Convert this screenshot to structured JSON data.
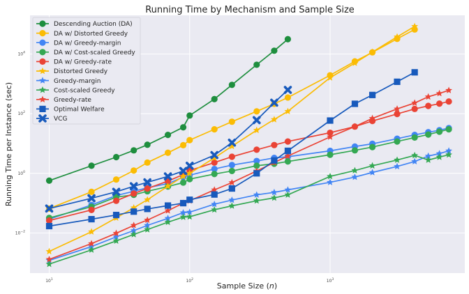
{
  "chart_data": {
    "type": "line",
    "title": "Running Time by Mechanism and Sample Size",
    "xlabel": "Sample Size",
    "xlabel_var": "n",
    "ylabel": "Running Time per Instance (sec)",
    "xscale": "log",
    "yscale": "log",
    "xlim": [
      7.3,
      9100
    ],
    "ylim": [
      0.00045,
      200000
    ],
    "grid": true,
    "legend_position": "top-left",
    "x_ticks": [
      {
        "value": 10,
        "base": "10",
        "exp": "1"
      },
      {
        "value": 100,
        "base": "10",
        "exp": "2"
      },
      {
        "value": 1000,
        "base": "10",
        "exp": "3"
      }
    ],
    "y_ticks": [
      {
        "value": 0.01,
        "base": "10",
        "exp": "−2"
      },
      {
        "value": 1,
        "base": "10",
        "exp": "0"
      },
      {
        "value": 100,
        "base": "10",
        "exp": "2"
      },
      {
        "value": 10000,
        "base": "10",
        "exp": "4"
      }
    ],
    "background": "#eaeaf2",
    "series": [
      {
        "name": "Descending Auction (DA)",
        "color": "#1e8e3e",
        "marker": "circle",
        "x": [
          10,
          20,
          30,
          40,
          50,
          70,
          90,
          100,
          150,
          200,
          300,
          400,
          500
        ],
        "y": [
          0.57,
          1.8,
          3.5,
          5.9,
          9.1,
          19.5,
          35,
          87,
          310,
          930,
          4400,
          13000,
          31600
        ]
      },
      {
        "name": "DA w/ Distorted Greedy",
        "color": "#fbbc04",
        "marker": "circle",
        "x": [
          10,
          20,
          30,
          40,
          50,
          70,
          90,
          100,
          150,
          200,
          300,
          400,
          500,
          1000,
          1500,
          2000,
          3000,
          4000
        ],
        "y": [
          0.066,
          0.24,
          0.62,
          1.24,
          2.3,
          4.9,
          8.8,
          13,
          30,
          54,
          120,
          215,
          350,
          1950,
          5700,
          11500,
          32500,
          67000
        ]
      },
      {
        "name": "DA w/ Greedy-margin",
        "color": "#4285f4",
        "marker": "circle",
        "x": [
          10,
          20,
          30,
          40,
          50,
          70,
          90,
          100,
          150,
          200,
          300,
          400,
          500,
          1000,
          1500,
          2000,
          3000,
          4000,
          5000,
          6000,
          7000
        ],
        "y": [
          0.029,
          0.087,
          0.18,
          0.25,
          0.33,
          0.45,
          0.75,
          0.87,
          1.4,
          1.9,
          2.6,
          3.3,
          3.6,
          5.7,
          7.9,
          9.8,
          14.5,
          19.5,
          24,
          28,
          33
        ]
      },
      {
        "name": "DA w/ Cost-scaled Greedy",
        "color": "#34a853",
        "marker": "circle",
        "x": [
          10,
          20,
          30,
          40,
          50,
          70,
          90,
          100,
          150,
          200,
          300,
          400,
          500,
          1000,
          1500,
          2000,
          3000,
          4000,
          5000,
          6000,
          7000
        ],
        "y": [
          0.032,
          0.076,
          0.16,
          0.19,
          0.25,
          0.36,
          0.49,
          0.64,
          0.95,
          1.2,
          1.8,
          2.1,
          2.5,
          4.2,
          5.9,
          7.6,
          11.7,
          15.9,
          20,
          25,
          30
        ]
      },
      {
        "name": "DA w/ Greedy-rate",
        "color": "#ea4335",
        "marker": "circle",
        "x": [
          10,
          20,
          30,
          40,
          50,
          70,
          90,
          100,
          150,
          200,
          300,
          400,
          500,
          1000,
          1500,
          2000,
          3000,
          4000,
          5000,
          6000,
          7000
        ],
        "y": [
          0.026,
          0.059,
          0.12,
          0.21,
          0.31,
          0.55,
          0.91,
          1.24,
          2.3,
          3.6,
          6.2,
          8.9,
          11.7,
          23,
          37,
          57,
          98,
          145,
          183,
          218,
          257
        ]
      },
      {
        "name": "Distorted Greedy",
        "color": "#fbbc04",
        "marker": "star",
        "x": [
          10,
          20,
          30,
          40,
          50,
          70,
          90,
          100,
          150,
          200,
          300,
          400,
          500,
          1000,
          1500,
          2000,
          3000,
          4000
        ],
        "y": [
          0.0024,
          0.011,
          0.032,
          0.07,
          0.13,
          0.37,
          0.79,
          1.0,
          3.3,
          8.1,
          28,
          64,
          120,
          1620,
          5000,
          11700,
          38000,
          85000
        ]
      },
      {
        "name": "Greedy-margin",
        "color": "#4285f4",
        "marker": "star",
        "x": [
          10,
          20,
          30,
          40,
          50,
          70,
          90,
          100,
          150,
          200,
          300,
          400,
          500,
          1000,
          1500,
          2000,
          3000,
          4000,
          5000,
          6000,
          7000
        ],
        "y": [
          0.0012,
          0.0035,
          0.0074,
          0.012,
          0.018,
          0.031,
          0.048,
          0.05,
          0.092,
          0.127,
          0.19,
          0.23,
          0.28,
          0.5,
          0.75,
          1.07,
          1.7,
          2.5,
          3.8,
          4.6,
          5.7
        ]
      },
      {
        "name": "Cost-scaled Greedy",
        "color": "#34a853",
        "marker": "star",
        "x": [
          10,
          20,
          30,
          40,
          50,
          70,
          90,
          100,
          150,
          200,
          300,
          400,
          500,
          1000,
          1500,
          2000,
          3000,
          4000,
          5000,
          6000,
          7000
        ],
        "y": [
          0.0009,
          0.0027,
          0.0054,
          0.0089,
          0.013,
          0.023,
          0.034,
          0.035,
          0.06,
          0.081,
          0.12,
          0.15,
          0.19,
          0.79,
          1.24,
          1.8,
          2.8,
          4.0,
          2.8,
          3.5,
          4.2
        ]
      },
      {
        "name": "Greedy-rate",
        "color": "#ea4335",
        "marker": "star",
        "x": [
          10,
          20,
          30,
          40,
          50,
          70,
          90,
          100,
          150,
          200,
          300,
          400,
          500,
          1000,
          1500,
          2000,
          3000,
          4000,
          5000,
          6000,
          7000
        ],
        "y": [
          0.0013,
          0.0044,
          0.0098,
          0.018,
          0.027,
          0.056,
          0.1,
          0.12,
          0.28,
          0.49,
          1.2,
          2.3,
          3.8,
          16.7,
          37,
          70,
          145,
          230,
          370,
          480,
          610
        ]
      },
      {
        "name": "Optimal Welfare",
        "color": "#185abc",
        "marker": "square",
        "x": [
          10,
          20,
          30,
          40,
          50,
          70,
          90,
          100,
          150,
          200,
          300,
          400,
          500,
          1000,
          1500,
          2000,
          3000,
          4000
        ],
        "y": [
          0.017,
          0.029,
          0.04,
          0.052,
          0.064,
          0.083,
          0.1,
          0.13,
          0.195,
          0.31,
          1.0,
          2.7,
          5.7,
          59,
          215,
          425,
          1180,
          2450
        ]
      },
      {
        "name": "VCG",
        "color": "#185abc",
        "marker": "x",
        "x": [
          10,
          20,
          30,
          40,
          50,
          70,
          90,
          100,
          150,
          200,
          300,
          400,
          500
        ],
        "y": [
          0.066,
          0.146,
          0.24,
          0.37,
          0.5,
          0.79,
          1.2,
          1.8,
          4.1,
          10.7,
          61,
          235,
          630
        ]
      }
    ]
  }
}
